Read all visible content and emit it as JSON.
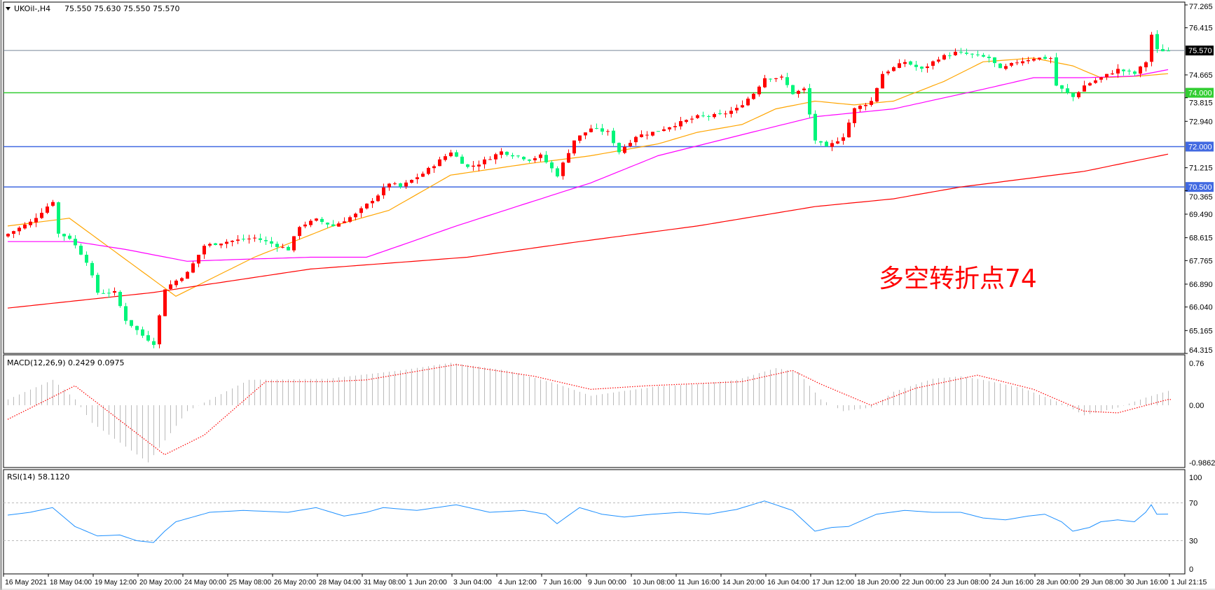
{
  "header": {
    "symbol": "UKOil-,H4",
    "ohlc_text": "75.550 75.630 75.550 75.570"
  },
  "annotation": {
    "text": "多空转折点74",
    "color": "#ff0000"
  },
  "colors": {
    "bull_candle": "#ff0000",
    "bear_candle": "#00f57a",
    "ma_fast": "#ffa500",
    "ma_mid": "#ff00ff",
    "ma_slow": "#ff0000",
    "macd_hist": "#bbbbbb",
    "macd_signal": "#ff0000",
    "rsi_line": "#1e90ff",
    "level_green": "#32cd32",
    "level_blue": "#4169e1",
    "current_price": "#778899"
  },
  "chart_data": [
    {
      "type": "candlestick",
      "title": "UKOil-,H4",
      "timeframe": "H4",
      "ylim": [
        64.315,
        77.265
      ],
      "y_ticks": [
        "77.265",
        "76.415",
        "74.665",
        "73.815",
        "72.940",
        "71.215",
        "70.365",
        "69.490",
        "68.615",
        "67.765",
        "66.890",
        "66.040",
        "65.165",
        "64.315"
      ],
      "x_ticks": [
        "16 May 2021",
        "18 May 04:00",
        "19 May 12:00",
        "20 May 20:00",
        "24 May 00:00",
        "25 May 08:00",
        "26 May 20:00",
        "28 May 04:00",
        "31 May 08:00",
        "1 Jun 20:00",
        "3 Jun 04:00",
        "4 Jun 12:00",
        "7 Jun 16:00",
        "9 Jun 00:00",
        "10 Jun 08:00",
        "11 Jun 16:00",
        "14 Jun 20:00",
        "16 Jun 04:00",
        "17 Jun 12:00",
        "18 Jun 20:00",
        "22 Jun 00:00",
        "23 Jun 08:00",
        "24 Jun 16:00",
        "28 Jun 00:00",
        "29 Jun 08:00",
        "30 Jun 16:00",
        "1 Jul 21:15"
      ],
      "bars": 208,
      "close_path": [
        [
          0,
          68.76
        ],
        [
          4,
          69.19
        ],
        [
          8,
          69.98
        ],
        [
          9,
          68.76
        ],
        [
          11,
          68.61
        ],
        [
          14,
          67.74
        ],
        [
          16,
          66.58
        ],
        [
          19,
          66.58
        ],
        [
          21,
          65.56
        ],
        [
          24,
          64.98
        ],
        [
          26,
          64.69
        ],
        [
          28,
          66.73
        ],
        [
          32,
          67.31
        ],
        [
          35,
          68.32
        ],
        [
          39,
          68.47
        ],
        [
          44,
          68.61
        ],
        [
          50,
          68.18
        ],
        [
          52,
          69.05
        ],
        [
          55,
          69.28
        ],
        [
          58,
          69.05
        ],
        [
          62,
          69.48
        ],
        [
          66,
          70.21
        ],
        [
          68,
          70.65
        ],
        [
          70,
          70.5
        ],
        [
          74,
          71.0
        ],
        [
          79,
          71.81
        ],
        [
          82,
          71.23
        ],
        [
          84,
          71.37
        ],
        [
          88,
          71.81
        ],
        [
          93,
          71.52
        ],
        [
          95,
          71.66
        ],
        [
          98,
          70.94
        ],
        [
          101,
          72.24
        ],
        [
          104,
          72.68
        ],
        [
          107,
          72.53
        ],
        [
          109,
          71.81
        ],
        [
          112,
          72.39
        ],
        [
          115,
          72.53
        ],
        [
          119,
          72.82
        ],
        [
          123,
          73.11
        ],
        [
          127,
          73.17
        ],
        [
          130,
          73.4
        ],
        [
          133,
          73.98
        ],
        [
          135,
          74.56
        ],
        [
          138,
          74.56
        ],
        [
          140,
          73.98
        ],
        [
          142,
          74.13
        ],
        [
          144,
          72.24
        ],
        [
          146,
          71.95
        ],
        [
          149,
          72.39
        ],
        [
          151,
          73.4
        ],
        [
          154,
          73.69
        ],
        [
          156,
          74.71
        ],
        [
          160,
          75.15
        ],
        [
          163,
          74.86
        ],
        [
          166,
          75.29
        ],
        [
          169,
          75.49
        ],
        [
          171,
          75.44
        ],
        [
          175,
          75.29
        ],
        [
          177,
          74.86
        ],
        [
          180,
          75.15
        ],
        [
          183,
          75.29
        ],
        [
          186,
          75.29
        ],
        [
          187,
          74.27
        ],
        [
          190,
          73.84
        ],
        [
          192,
          74.27
        ],
        [
          195,
          74.56
        ],
        [
          198,
          74.86
        ],
        [
          201,
          74.71
        ],
        [
          203,
          75.15
        ],
        [
          204,
          76.16
        ],
        [
          205,
          75.58
        ],
        [
          207,
          75.57
        ]
      ],
      "moving_averages": [
        {
          "color": "#ffa500",
          "path": [
            [
              0,
              69.05
            ],
            [
              11,
              69.34
            ],
            [
              30,
              66.44
            ],
            [
              44,
              67.89
            ],
            [
              58,
              69.05
            ],
            [
              68,
              69.63
            ],
            [
              79,
              70.94
            ],
            [
              93,
              71.37
            ],
            [
              104,
              71.66
            ],
            [
              116,
              72.1
            ],
            [
              123,
              72.53
            ],
            [
              131,
              72.82
            ],
            [
              137,
              73.4
            ],
            [
              144,
              73.69
            ],
            [
              151,
              73.55
            ],
            [
              158,
              73.69
            ],
            [
              167,
              74.42
            ],
            [
              174,
              75.15
            ],
            [
              183,
              75.29
            ],
            [
              190,
              75.0
            ],
            [
              195,
              74.56
            ],
            [
              202,
              74.62
            ],
            [
              207,
              74.71
            ]
          ]
        },
        {
          "color": "#ff00ff",
          "path": [
            [
              0,
              68.47
            ],
            [
              12,
              68.47
            ],
            [
              21,
              68.18
            ],
            [
              32,
              67.74
            ],
            [
              40,
              67.8
            ],
            [
              54,
              67.89
            ],
            [
              64,
              67.89
            ],
            [
              70,
              68.32
            ],
            [
              80,
              69.05
            ],
            [
              93,
              69.92
            ],
            [
              104,
              70.65
            ],
            [
              116,
              71.66
            ],
            [
              130,
              72.39
            ],
            [
              144,
              73.11
            ],
            [
              158,
              73.4
            ],
            [
              174,
              74.13
            ],
            [
              183,
              74.56
            ],
            [
              192,
              74.56
            ],
            [
              201,
              74.62
            ],
            [
              207,
              74.86
            ]
          ]
        },
        {
          "color": "#ff0000",
          "path": [
            [
              0,
              66.0
            ],
            [
              26,
              66.58
            ],
            [
              54,
              67.45
            ],
            [
              82,
              67.89
            ],
            [
              102,
              68.47
            ],
            [
              123,
              69.05
            ],
            [
              144,
              69.77
            ],
            [
              158,
              70.06
            ],
            [
              170,
              70.5
            ],
            [
              192,
              71.08
            ],
            [
              207,
              71.72
            ]
          ]
        }
      ],
      "horizontal_levels": [
        {
          "label": "75.570",
          "value": 75.57,
          "color": "#778899",
          "kind": "current-price"
        },
        {
          "label": "74.000",
          "value": 74.0,
          "color": "#32cd32"
        },
        {
          "label": "72.000",
          "value": 72.0,
          "color": "#4169e1"
        },
        {
          "label": "70.500",
          "value": 70.5,
          "color": "#4169e1"
        }
      ]
    },
    {
      "type": "bar",
      "title": "MACD(12,26,9) 0.2429 0.0975",
      "ylim": [
        -0.9862,
        0.76
      ],
      "y_ticks": [
        "0.76",
        "0.00",
        "-0.9862"
      ],
      "histogram_path": [
        [
          0,
          0.1
        ],
        [
          8,
          0.43
        ],
        [
          12,
          0.1
        ],
        [
          15,
          -0.3
        ],
        [
          25,
          -0.97
        ],
        [
          32,
          -0.1
        ],
        [
          43,
          0.43
        ],
        [
          57,
          0.45
        ],
        [
          70,
          0.59
        ],
        [
          79,
          0.72
        ],
        [
          89,
          0.59
        ],
        [
          98,
          0.36
        ],
        [
          104,
          0.16
        ],
        [
          109,
          0.23
        ],
        [
          116,
          0.32
        ],
        [
          123,
          0.36
        ],
        [
          130,
          0.43
        ],
        [
          137,
          0.63
        ],
        [
          141,
          0.56
        ],
        [
          145,
          0.1
        ],
        [
          149,
          -0.1
        ],
        [
          154,
          -0.04
        ],
        [
          158,
          0.23
        ],
        [
          165,
          0.45
        ],
        [
          170,
          0.49
        ],
        [
          174,
          0.43
        ],
        [
          181,
          0.29
        ],
        [
          188,
          0.03
        ],
        [
          192,
          -0.17
        ],
        [
          198,
          -0.04
        ],
        [
          203,
          0.13
        ],
        [
          207,
          0.2429
        ]
      ],
      "signal_path": [
        [
          0,
          -0.24
        ],
        [
          12,
          0.33
        ],
        [
          18,
          -0.11
        ],
        [
          28,
          -0.84
        ],
        [
          35,
          -0.51
        ],
        [
          46,
          0.4
        ],
        [
          57,
          0.4
        ],
        [
          64,
          0.43
        ],
        [
          80,
          0.69
        ],
        [
          94,
          0.49
        ],
        [
          104,
          0.27
        ],
        [
          114,
          0.33
        ],
        [
          131,
          0.4
        ],
        [
          140,
          0.59
        ],
        [
          145,
          0.36
        ],
        [
          154,
          0.0
        ],
        [
          162,
          0.29
        ],
        [
          173,
          0.51
        ],
        [
          183,
          0.27
        ],
        [
          192,
          -0.1
        ],
        [
          198,
          -0.13
        ],
        [
          207,
          0.0975
        ]
      ]
    },
    {
      "type": "line",
      "title": "RSI(14) 58.1120",
      "ylim": [
        0,
        100
      ],
      "y_ticks": [
        "100",
        "70",
        "30",
        "0"
      ],
      "levels": [
        70,
        30
      ],
      "rsi_path": [
        [
          0,
          57
        ],
        [
          4,
          60
        ],
        [
          8,
          65
        ],
        [
          10,
          55
        ],
        [
          12,
          45
        ],
        [
          16,
          35
        ],
        [
          20,
          36
        ],
        [
          23,
          30
        ],
        [
          26,
          28
        ],
        [
          28,
          40
        ],
        [
          30,
          50
        ],
        [
          36,
          60
        ],
        [
          42,
          62
        ],
        [
          50,
          60
        ],
        [
          55,
          65
        ],
        [
          60,
          56
        ],
        [
          64,
          60
        ],
        [
          67,
          65
        ],
        [
          73,
          62
        ],
        [
          80,
          68
        ],
        [
          86,
          60
        ],
        [
          92,
          62
        ],
        [
          96,
          58
        ],
        [
          98,
          48
        ],
        [
          102,
          65
        ],
        [
          106,
          58
        ],
        [
          110,
          55
        ],
        [
          115,
          58
        ],
        [
          120,
          60
        ],
        [
          125,
          58
        ],
        [
          130,
          63
        ],
        [
          135,
          72
        ],
        [
          138,
          66
        ],
        [
          140,
          62
        ],
        [
          144,
          40
        ],
        [
          147,
          44
        ],
        [
          150,
          45
        ],
        [
          155,
          58
        ],
        [
          160,
          62
        ],
        [
          165,
          60
        ],
        [
          170,
          60
        ],
        [
          174,
          54
        ],
        [
          178,
          52
        ],
        [
          182,
          56
        ],
        [
          185,
          58
        ],
        [
          188,
          50
        ],
        [
          190,
          40
        ],
        [
          193,
          44
        ],
        [
          195,
          50
        ],
        [
          198,
          52
        ],
        [
          201,
          50
        ],
        [
          203,
          60
        ],
        [
          204,
          68
        ],
        [
          205,
          58
        ],
        [
          207,
          58.112
        ]
      ]
    }
  ]
}
